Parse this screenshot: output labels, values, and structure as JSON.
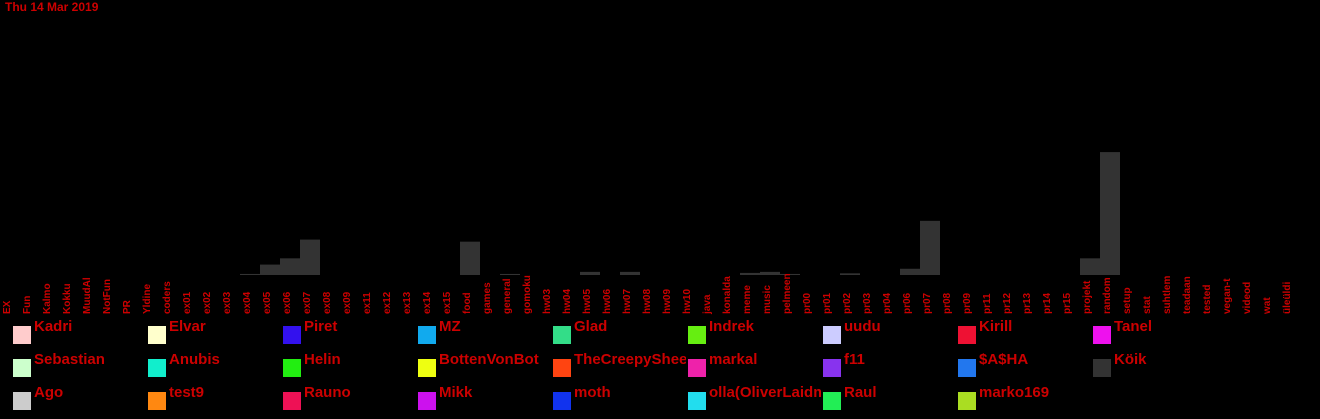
{
  "chart_data": {
    "type": "bar",
    "title": "Thu 14 Mar 2019",
    "categories": [
      "EX",
      "Fun",
      "Kalmo",
      "Kokku",
      "MuudAl",
      "NotFun",
      "PR",
      "Yldine",
      "coders",
      "ex01",
      "ex02",
      "ex03",
      "ex04",
      "ex05",
      "ex06",
      "ex07",
      "ex08",
      "ex09",
      "ex11",
      "ex12",
      "ex13",
      "ex14",
      "ex15",
      "food",
      "games",
      "general",
      "gomoku",
      "hw03",
      "hw04",
      "hw05",
      "hw06",
      "hw07",
      "hw08",
      "hw09",
      "hw10",
      "java",
      "konalda",
      "meme",
      "music",
      "pelmeen",
      "pr00",
      "pr01",
      "pr02",
      "pr03",
      "pr04",
      "pr06",
      "pr07",
      "pr08",
      "pr09",
      "pr11",
      "pr12",
      "pr13",
      "pr14",
      "pr15",
      "projekt",
      "random",
      "setup",
      "stat",
      "suhtlem",
      "teadaan",
      "tested",
      "vegan-t",
      "videod",
      "wat",
      "üleüldi"
    ],
    "values": [
      0,
      0,
      0,
      0,
      0,
      0,
      0,
      0,
      0,
      0,
      0,
      0,
      0.5,
      5,
      8,
      17,
      0,
      0,
      0,
      0,
      0,
      0,
      0,
      16,
      0,
      0.5,
      0,
      0,
      0,
      1.5,
      0,
      1.5,
      0,
      0,
      0,
      0,
      0,
      1,
      1.5,
      0.5,
      0,
      0,
      0.8,
      0,
      0,
      3,
      26,
      0,
      0,
      0,
      0,
      0,
      0,
      0,
      8,
      59,
      0,
      0,
      0,
      0,
      0,
      0,
      0,
      0,
      0
    ],
    "ylim": [
      0,
      60
    ],
    "bar_color": "#333333",
    "tick_color": "#cc0000",
    "background": "#000000",
    "legend": [
      {
        "name": "Kadri",
        "color": "#ffcccc"
      },
      {
        "name": "Elvar",
        "color": "#ffffcc"
      },
      {
        "name": "Piret",
        "color": "#3311ee"
      },
      {
        "name": "MZ",
        "color": "#11aaee"
      },
      {
        "name": "Glad",
        "color": "#33dd88"
      },
      {
        "name": "Indrek",
        "color": "#66ee11"
      },
      {
        "name": "uudu",
        "color": "#ccccff"
      },
      {
        "name": "Kirill",
        "color": "#ee1133"
      },
      {
        "name": "Tanel",
        "color": "#ee11ee"
      },
      {
        "name": "Sebastian",
        "color": "#ccffcc"
      },
      {
        "name": "Anubis",
        "color": "#11eecc"
      },
      {
        "name": "Helin",
        "color": "#22ee11"
      },
      {
        "name": "BottenVonBot",
        "color": "#eeff11"
      },
      {
        "name": "TheCreepySheep",
        "color": "#ff4411"
      },
      {
        "name": "markal",
        "color": "#ee22aa"
      },
      {
        "name": "f11",
        "color": "#8833ee"
      },
      {
        "name": "$A$HA",
        "color": "#2277ee"
      },
      {
        "name": "Köik",
        "color": "#333333"
      },
      {
        "name": "Ago",
        "color": "#cccccc"
      },
      {
        "name": "test9",
        "color": "#ff8811"
      },
      {
        "name": "Rauno",
        "color": "#ee1155"
      },
      {
        "name": "Mikk",
        "color": "#cc11ee"
      },
      {
        "name": "moth",
        "color": "#1133ee"
      },
      {
        "name": "olla(OliverLaidma)",
        "color": "#22ddee"
      },
      {
        "name": "Raul",
        "color": "#22ee55"
      },
      {
        "name": "marko169",
        "color": "#aadd22"
      }
    ]
  }
}
